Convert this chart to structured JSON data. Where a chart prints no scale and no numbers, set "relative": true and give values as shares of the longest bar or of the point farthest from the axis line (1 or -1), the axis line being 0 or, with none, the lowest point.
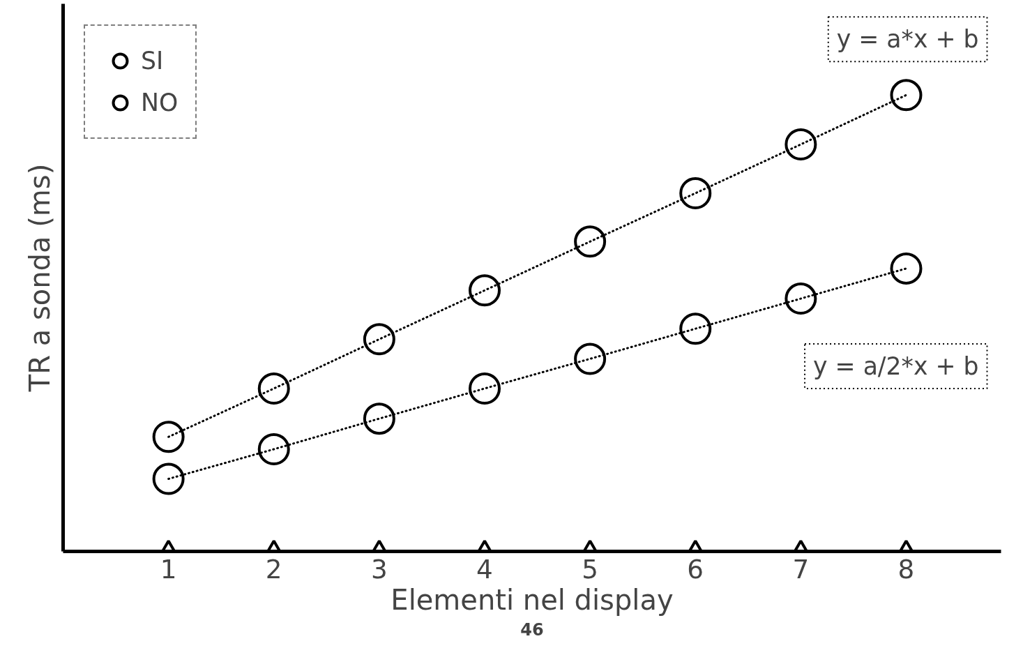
{
  "chart_data": {
    "type": "line",
    "relative": true,
    "xlabel": "Elementi nel display",
    "ylabel": "TR a sonda (ms)",
    "x": [
      1,
      2,
      3,
      4,
      5,
      6,
      7,
      8
    ],
    "xlim": [
      0,
      8.9
    ],
    "xticks": [
      1,
      2,
      3,
      4,
      5,
      6,
      7,
      8
    ],
    "marker": "circle",
    "line_style": "dotted",
    "legend": "top left",
    "grid": false,
    "series": [
      {
        "name": "SI",
        "color": "#000000",
        "values": [
          0.251,
          0.357,
          0.465,
          0.572,
          0.679,
          0.785,
          0.892,
          1
        ]
      },
      {
        "name": "NO",
        "color": "#000000",
        "values": [
          0.159,
          0.224,
          0.291,
          0.357,
          0.422,
          0.488,
          0.554,
          0.62
        ]
      },
      {
        "type": "scatter",
        "marker": "triangle",
        "color": "#000000",
        "values": [
          0,
          0,
          0,
          0,
          0,
          0,
          0,
          0
        ]
      }
    ],
    "annotations": [
      "y = a*x + b",
      "y = a/2*x + b",
      "46"
    ]
  }
}
